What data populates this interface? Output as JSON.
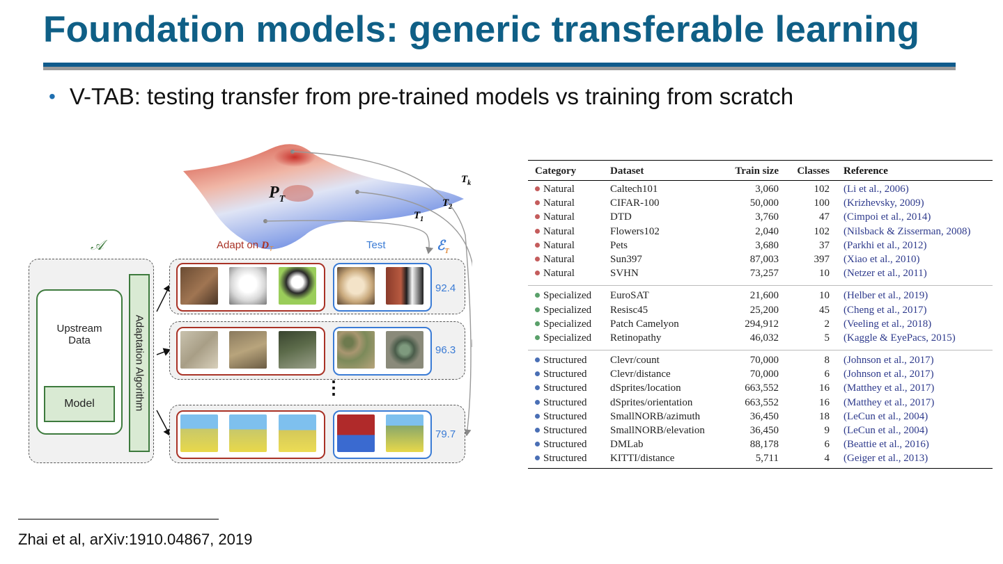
{
  "slide": {
    "title": "Foundation models: generic transferable learning",
    "bullet": "V-TAB: testing transfer from pre-trained models vs training from scratch",
    "footnote": "Zhai et al, arXiv:1910.04867, 2019"
  },
  "diagram": {
    "surface_label": "P",
    "surface_label_sub": "T",
    "task_labels": [
      {
        "main": "T",
        "sub": "k"
      },
      {
        "main": "T",
        "sub": "2"
      },
      {
        "main": "T",
        "sub": "1"
      }
    ],
    "algorithm_symbol": "𝒜",
    "adapt_label": "Adapt on ",
    "adapt_label_var": "D",
    "adapt_label_sub": "T",
    "test_label": "Test",
    "eval_symbol": "ℰ",
    "eval_symbol_sub": "T",
    "upstream_line1": "Upstream",
    "upstream_line2": "Data",
    "model_label": "Model",
    "adaptation_label": "Adaptation Algorithm",
    "ellipsis": "⋮",
    "rows": [
      {
        "score": "92.4",
        "kind": "pets"
      },
      {
        "score": "96.3",
        "kind": "satellite"
      },
      {
        "score": "79.7",
        "kind": "dmlab"
      }
    ],
    "colors": {
      "adapt_box": "#a93226",
      "test_box": "#3a7bd5",
      "green": "#3d7a3d"
    }
  },
  "table": {
    "headers": [
      "Category",
      "Dataset",
      "Train size",
      "Classes",
      "Reference"
    ],
    "category_colors": {
      "Natural": "#c45c5c",
      "Specialized": "#5aa06a",
      "Structured": "#4a6fb5"
    },
    "groups": [
      [
        {
          "category": "Natural",
          "dataset": "Caltech101",
          "train": "3,060",
          "classes": "102",
          "ref": "(Li et al., 2006)"
        },
        {
          "category": "Natural",
          "dataset": "CIFAR-100",
          "train": "50,000",
          "classes": "100",
          "ref": "(Krizhevsky, 2009)"
        },
        {
          "category": "Natural",
          "dataset": "DTD",
          "train": "3,760",
          "classes": "47",
          "ref": "(Cimpoi et al., 2014)"
        },
        {
          "category": "Natural",
          "dataset": "Flowers102",
          "train": "2,040",
          "classes": "102",
          "ref": "(Nilsback & Zisserman, 2008)"
        },
        {
          "category": "Natural",
          "dataset": "Pets",
          "train": "3,680",
          "classes": "37",
          "ref": "(Parkhi et al., 2012)"
        },
        {
          "category": "Natural",
          "dataset": "Sun397",
          "train": "87,003",
          "classes": "397",
          "ref": "(Xiao et al., 2010)"
        },
        {
          "category": "Natural",
          "dataset": "SVHN",
          "train": "73,257",
          "classes": "10",
          "ref": "(Netzer et al., 2011)"
        }
      ],
      [
        {
          "category": "Specialized",
          "dataset": "EuroSAT",
          "train": "21,600",
          "classes": "10",
          "ref": "(Helber et al., 2019)"
        },
        {
          "category": "Specialized",
          "dataset": "Resisc45",
          "train": "25,200",
          "classes": "45",
          "ref": "(Cheng et al., 2017)"
        },
        {
          "category": "Specialized",
          "dataset": "Patch Camelyon",
          "train": "294,912",
          "classes": "2",
          "ref": "(Veeling et al., 2018)"
        },
        {
          "category": "Specialized",
          "dataset": "Retinopathy",
          "train": "46,032",
          "classes": "5",
          "ref": "(Kaggle & EyePacs, 2015)"
        }
      ],
      [
        {
          "category": "Structured",
          "dataset": "Clevr/count",
          "train": "70,000",
          "classes": "8",
          "ref": "(Johnson et al., 2017)"
        },
        {
          "category": "Structured",
          "dataset": "Clevr/distance",
          "train": "70,000",
          "classes": "6",
          "ref": "(Johnson et al., 2017)"
        },
        {
          "category": "Structured",
          "dataset": "dSprites/location",
          "train": "663,552",
          "classes": "16",
          "ref": "(Matthey et al., 2017)"
        },
        {
          "category": "Structured",
          "dataset": "dSprites/orientation",
          "train": "663,552",
          "classes": "16",
          "ref": "(Matthey et al., 2017)"
        },
        {
          "category": "Structured",
          "dataset": "SmallNORB/azimuth",
          "train": "36,450",
          "classes": "18",
          "ref": "(LeCun et al., 2004)"
        },
        {
          "category": "Structured",
          "dataset": "SmallNORB/elevation",
          "train": "36,450",
          "classes": "9",
          "ref": "(LeCun et al., 2004)"
        },
        {
          "category": "Structured",
          "dataset": "DMLab",
          "train": "88,178",
          "classes": "6",
          "ref": "(Beattie et al., 2016)"
        },
        {
          "category": "Structured",
          "dataset": "KITTI/distance",
          "train": "5,711",
          "classes": "4",
          "ref": "(Geiger et al., 2013)"
        }
      ]
    ]
  }
}
